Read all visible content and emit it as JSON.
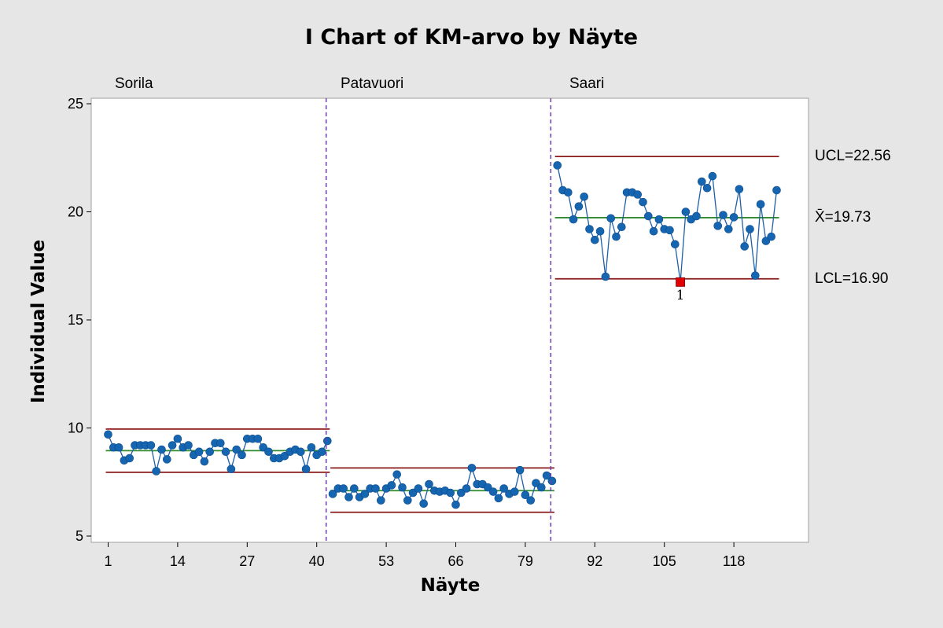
{
  "chart_data": {
    "type": "line",
    "title": "I Chart of KM-arvo by Näyte",
    "xlabel": "Näyte",
    "ylabel": "Individual Value",
    "ylim": [
      5,
      25
    ],
    "xlim": [
      0,
      126
    ],
    "y_ticks": [
      "5",
      "10",
      "15",
      "20",
      "25"
    ],
    "x_ticks": [
      "1",
      "14",
      "27",
      "40",
      "53",
      "66",
      "79",
      "92",
      "105",
      "118"
    ],
    "grid": false,
    "stages": [
      {
        "name": "Sorila",
        "x_start": 1,
        "ucl": 9.95,
        "center": 8.95,
        "lcl": 7.95,
        "values": [
          9.7,
          9.1,
          9.1,
          8.5,
          8.6,
          9.2,
          9.2,
          9.2,
          9.2,
          8.0,
          9.0,
          8.55,
          9.2,
          9.5,
          9.1,
          9.2,
          8.75,
          8.9,
          8.45,
          8.9,
          9.3,
          9.3,
          8.9,
          8.1,
          9.0,
          8.75,
          9.5,
          9.5,
          9.5,
          9.1,
          8.9,
          8.6,
          8.6,
          8.7,
          8.9,
          9.0,
          8.9,
          8.1,
          9.1,
          8.75,
          8.9,
          9.4
        ]
      },
      {
        "name": "Patavuori",
        "x_start": 43,
        "ucl": 8.15,
        "center": 7.1,
        "lcl": 6.1,
        "values": [
          6.95,
          7.2,
          7.2,
          6.8,
          7.2,
          6.8,
          6.95,
          7.2,
          7.2,
          6.65,
          7.2,
          7.35,
          7.85,
          7.25,
          6.65,
          7.0,
          7.2,
          6.5,
          7.4,
          7.1,
          7.05,
          7.1,
          7.0,
          6.45,
          7.0,
          7.2,
          8.15,
          7.4,
          7.4,
          7.25,
          7.05,
          6.75,
          7.2,
          6.95,
          7.05,
          8.05,
          6.9,
          6.65,
          7.45,
          7.25,
          7.8,
          7.55
        ]
      },
      {
        "name": "Saari",
        "x_start": 85,
        "ucl": 22.56,
        "center": 19.73,
        "lcl": 16.9,
        "ucl_label": "UCL=22.56",
        "center_label": "X̄=19.73",
        "lcl_label": "LCL=16.90",
        "values": [
          22.15,
          21.0,
          20.9,
          19.65,
          20.25,
          20.7,
          19.2,
          18.7,
          19.1,
          17.0,
          19.7,
          18.85,
          19.3,
          20.9,
          20.9,
          20.8,
          20.45,
          19.8,
          19.1,
          19.65,
          19.2,
          19.15,
          18.5,
          16.75,
          20.0,
          19.65,
          19.8,
          21.4,
          21.1,
          21.65,
          19.35,
          19.85,
          19.2,
          19.75,
          21.05,
          18.4,
          19.2,
          17.05,
          20.35,
          18.65,
          18.85,
          21.0
        ],
        "out_of_control": [
          {
            "x": 108,
            "value": 16.75,
            "test": "1"
          }
        ]
      }
    ]
  },
  "colors": {
    "background": "#e6e6e6",
    "plot_area": "#ffffff",
    "series": "#1f5fa8",
    "marker": "#1565b0",
    "center_line": "#2e8b2e",
    "control_limit": "#8b1a1a",
    "stage_divider": "#6a3fb5",
    "out_of_control_marker": "#e00000"
  }
}
